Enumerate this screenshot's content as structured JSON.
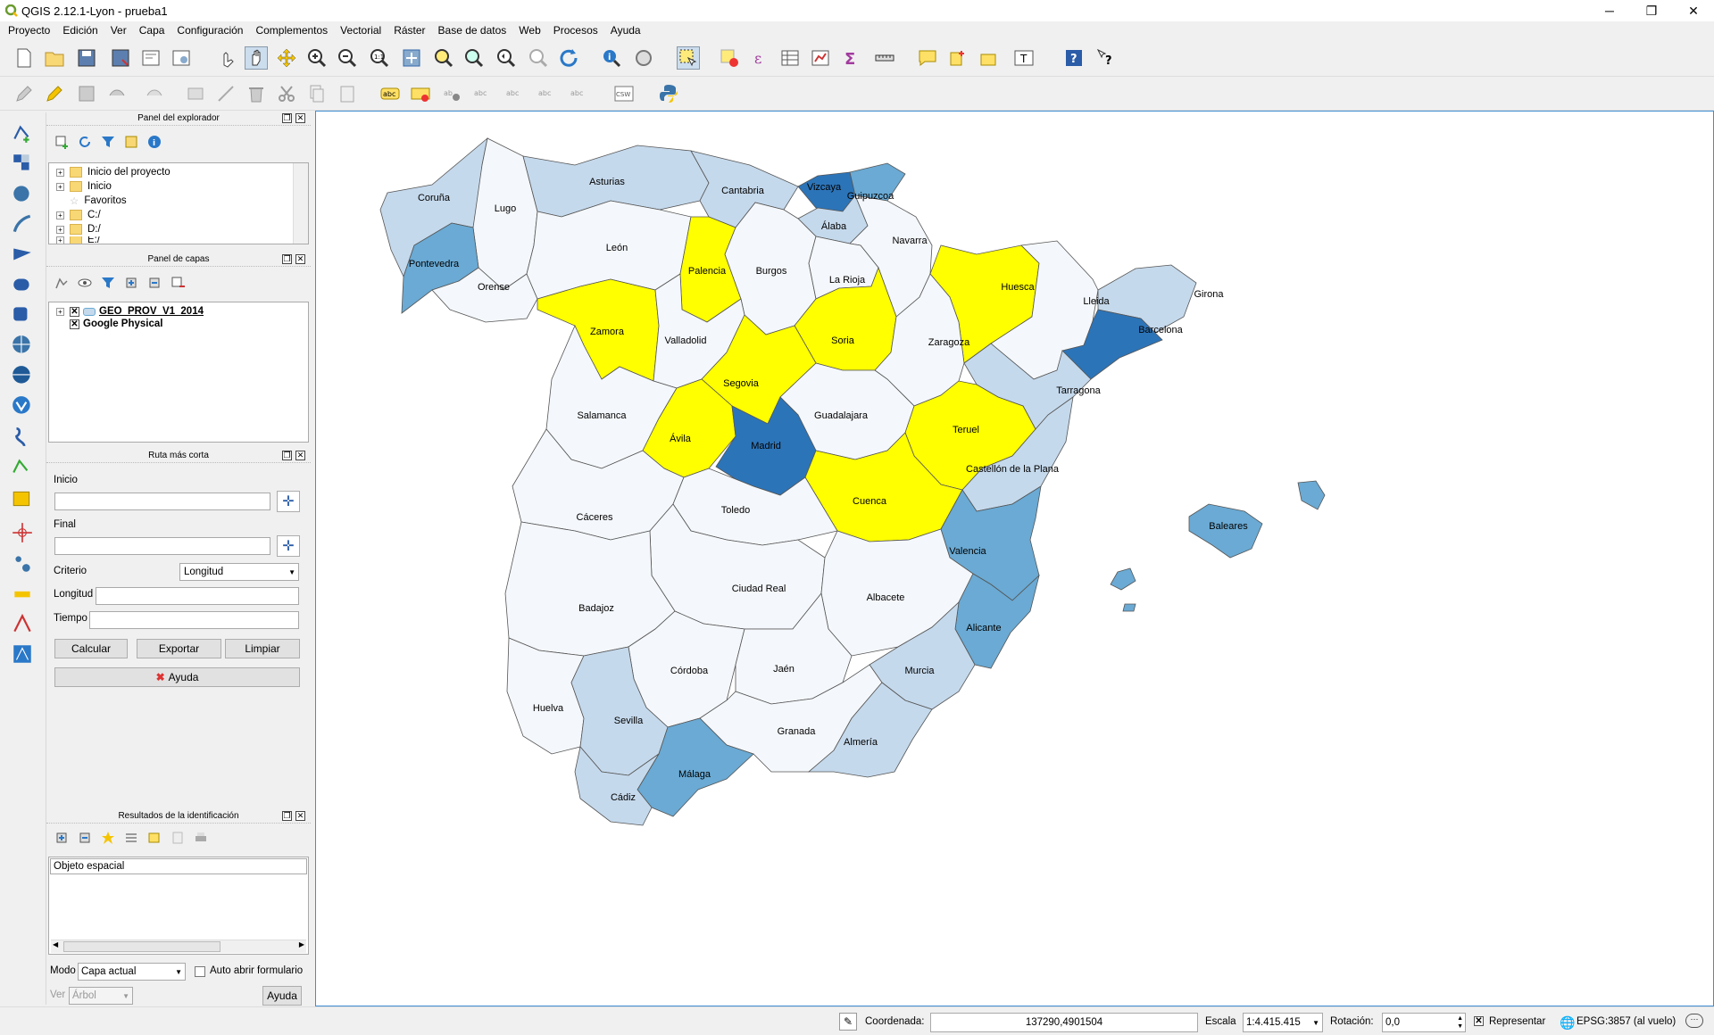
{
  "window": {
    "title": "QGIS 2.12.1-Lyon - prueba1",
    "minimize": "─",
    "restore": "❐",
    "close": "✕"
  },
  "menubar": [
    "Proyecto",
    "Edición",
    "Ver",
    "Capa",
    "Configuración",
    "Complementos",
    "Vectorial",
    "Ráster",
    "Base de datos",
    "Web",
    "Procesos",
    "Ayuda"
  ],
  "browser_panel": {
    "title": "Panel del explorador",
    "items": [
      {
        "label": "Inicio del proyecto",
        "icon": "folder-icon"
      },
      {
        "label": "Inicio",
        "icon": "folder-icon"
      },
      {
        "label": "Favoritos",
        "icon": "star-icon"
      },
      {
        "label": "C:/",
        "icon": "folder-icon"
      },
      {
        "label": "D:/",
        "icon": "folder-icon"
      },
      {
        "label": "E:/",
        "icon": "folder-icon"
      }
    ]
  },
  "layers_panel": {
    "title": "Panel de capas",
    "layers": [
      {
        "label": "GEO_PROV_V1_2014",
        "checked": true
      },
      {
        "label": "Google Physical",
        "checked": true
      }
    ]
  },
  "route_panel": {
    "title": "Ruta más corta",
    "start_label": "Inicio",
    "end_label": "Final",
    "criterion_label": "Criterio",
    "criterion_value": "Longitud",
    "length_label": "Longitud",
    "time_label": "Tiempo",
    "calc_button": "Calcular",
    "export_button": "Exportar",
    "clear_button": "Limpiar",
    "help_button": "Ayuda"
  },
  "identify_panel": {
    "title": "Resultados de la identificación",
    "column_header": "Objeto espacial",
    "mode_label": "Modo",
    "mode_value": "Capa actual",
    "auto_open_label": "Auto abrir formulario",
    "view_label": "Ver",
    "view_value": "Árbol",
    "help_button": "Ayuda"
  },
  "statusbar": {
    "coord_label": "Coordenada:",
    "coord_value": "137290,4901504",
    "scale_label": "Escala",
    "scale_value": "1:4.415.415",
    "rotation_label": "Rotación:",
    "rotation_value": "0,0",
    "render_label": "Representar",
    "crs_label": "EPSG:3857 (al vuelo)"
  },
  "map": {
    "colors": {
      "level0": "#f4f7fb",
      "level1": "#c5d9ec",
      "level2": "#6aaad4",
      "level3": "#2c74b8",
      "highlight": "#ffff00",
      "border": "#555555"
    },
    "provinces": [
      {
        "name": "Coruña",
        "level": "level1"
      },
      {
        "name": "Lugo",
        "level": "level0"
      },
      {
        "name": "Asturias",
        "level": "level1"
      },
      {
        "name": "Cantabria",
        "level": "level1"
      },
      {
        "name": "Vizcaya",
        "level": "level3"
      },
      {
        "name": "Guipuzcoa",
        "level": "level2"
      },
      {
        "name": "Álaba",
        "level": "level1"
      },
      {
        "name": "Navarra",
        "level": "level0"
      },
      {
        "name": "Huesca",
        "level": "highlight"
      },
      {
        "name": "Lleida",
        "level": "level0"
      },
      {
        "name": "Girona",
        "level": "level1"
      },
      {
        "name": "Barcelona",
        "level": "level3"
      },
      {
        "name": "Pontevedra",
        "level": "level2"
      },
      {
        "name": "Orense",
        "level": "level0"
      },
      {
        "name": "León",
        "level": "level0"
      },
      {
        "name": "Palencia",
        "level": "highlight"
      },
      {
        "name": "Burgos",
        "level": "level0"
      },
      {
        "name": "La Rioja",
        "level": "level0"
      },
      {
        "name": "Zamora",
        "level": "highlight"
      },
      {
        "name": "Valladolid",
        "level": "level0"
      },
      {
        "name": "Soria",
        "level": "highlight"
      },
      {
        "name": "Zaragoza",
        "level": "level0"
      },
      {
        "name": "Tarragona",
        "level": "level1"
      },
      {
        "name": "Segovia",
        "level": "highlight"
      },
      {
        "name": "Salamanca",
        "level": "level0"
      },
      {
        "name": "Guadalajara",
        "level": "level0"
      },
      {
        "name": "Teruel",
        "level": "highlight"
      },
      {
        "name": "Ávila",
        "level": "highlight"
      },
      {
        "name": "Madrid",
        "level": "level3"
      },
      {
        "name": "Castellón de la Plana",
        "level": "level1"
      },
      {
        "name": "Cuenca",
        "level": "highlight"
      },
      {
        "name": "Cáceres",
        "level": "level0"
      },
      {
        "name": "Toledo",
        "level": "level0"
      },
      {
        "name": "Valencia",
        "level": "level2"
      },
      {
        "name": "Baleares",
        "level": "level2"
      },
      {
        "name": "Ciudad Real",
        "level": "level0"
      },
      {
        "name": "Badajoz",
        "level": "level0"
      },
      {
        "name": "Albacete",
        "level": "level0"
      },
      {
        "name": "Alicante",
        "level": "level2"
      },
      {
        "name": "Córdoba",
        "level": "level0"
      },
      {
        "name": "Jaén",
        "level": "level0"
      },
      {
        "name": "Murcia",
        "level": "level1"
      },
      {
        "name": "Huelva",
        "level": "level0"
      },
      {
        "name": "Sevilla",
        "level": "level1"
      },
      {
        "name": "Granada",
        "level": "level0"
      },
      {
        "name": "Almería",
        "level": "level1"
      },
      {
        "name": "Málaga",
        "level": "level2"
      },
      {
        "name": "Cádiz",
        "level": "level1"
      }
    ]
  }
}
